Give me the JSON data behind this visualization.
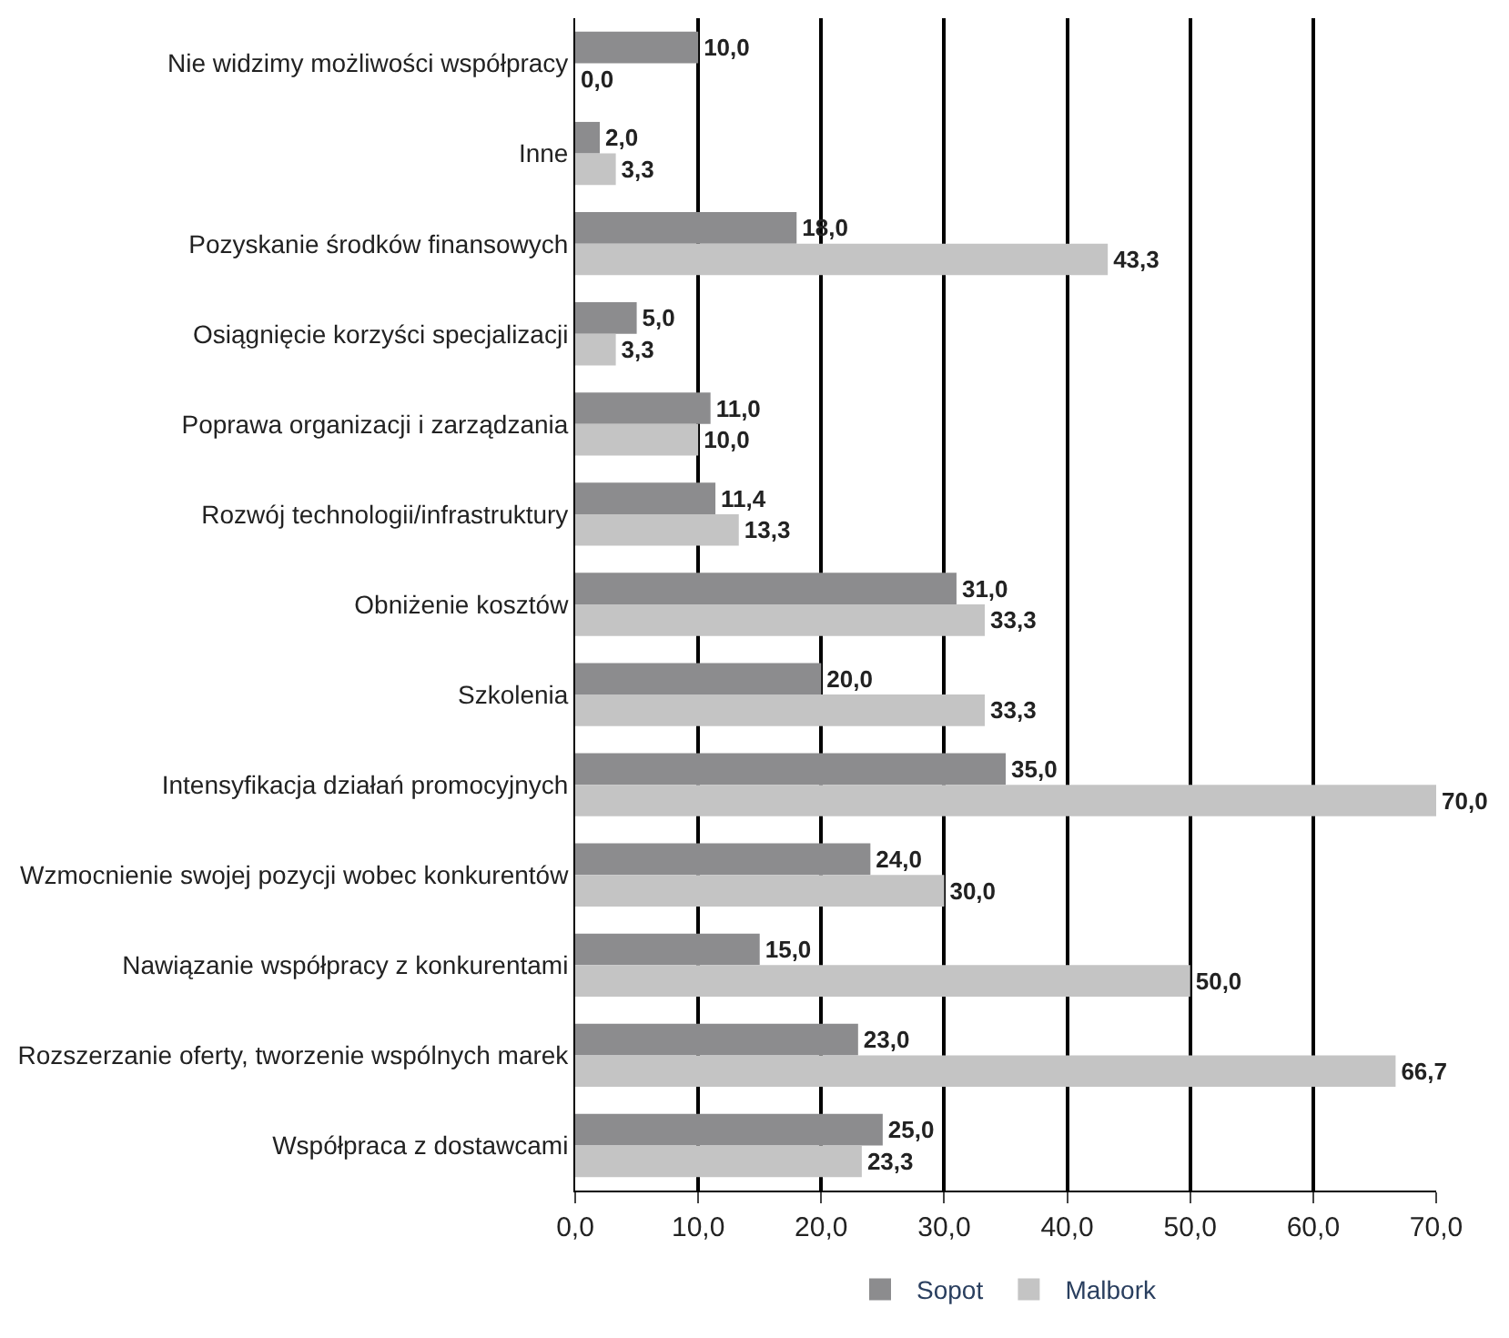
{
  "chart_data": {
    "type": "bar",
    "orientation": "horizontal",
    "categories": [
      "Nie widzimy możliwości współpracy",
      "Inne",
      "Pozyskanie środków finansowych",
      "Osiągnięcie korzyści specjalizacji",
      "Poprawa organizacji i zarządzania",
      "Rozwój technologii/infrastruktury",
      "Obniżenie kosztów",
      "Szkolenia",
      "Intensyfikacja działań promocyjnych",
      "Wzmocnienie swojej pozycji wobec konkurentów",
      "Nawiązanie współpracy z konkurentami",
      "Rozszerzanie oferty, tworzenie wspólnych marek",
      "Współpraca z dostawcami"
    ],
    "series": [
      {
        "name": "Sopot",
        "color": "#8c8c8e",
        "values": [
          10.0,
          2.0,
          18.0,
          5.0,
          11.0,
          11.4,
          31.0,
          20.0,
          35.0,
          24.0,
          15.0,
          23.0,
          25.0
        ],
        "value_labels": [
          "10,0",
          "2,0",
          "18,0",
          "5,0",
          "11,0",
          "11,4",
          "31,0",
          "20,0",
          "35,0",
          "24,0",
          "15,0",
          "23,0",
          "25,0"
        ]
      },
      {
        "name": "Malbork",
        "color": "#c4c4c4",
        "values": [
          0.0,
          3.3,
          43.3,
          3.3,
          10.0,
          13.3,
          33.3,
          33.3,
          70.0,
          30.0,
          50.0,
          66.7,
          23.3
        ],
        "value_labels": [
          "0,0",
          "3,3",
          "43,3",
          "3,3",
          "10,0",
          "13,3",
          "33,3",
          "33,3",
          "70,0",
          "30,0",
          "50,0",
          "66,7",
          "23,3"
        ]
      }
    ],
    "xlim": [
      0,
      70
    ],
    "xticks": [
      {
        "value": 0,
        "label": "0,0"
      },
      {
        "value": 10,
        "label": "10,0"
      },
      {
        "value": 20,
        "label": "20,0"
      },
      {
        "value": 30,
        "label": "30,0"
      },
      {
        "value": 40,
        "label": "40,0"
      },
      {
        "value": 50,
        "label": "50,0"
      },
      {
        "value": 60,
        "label": "60,0"
      },
      {
        "value": 70,
        "label": "70,0"
      }
    ],
    "grid": "x",
    "legend": "bottom"
  }
}
